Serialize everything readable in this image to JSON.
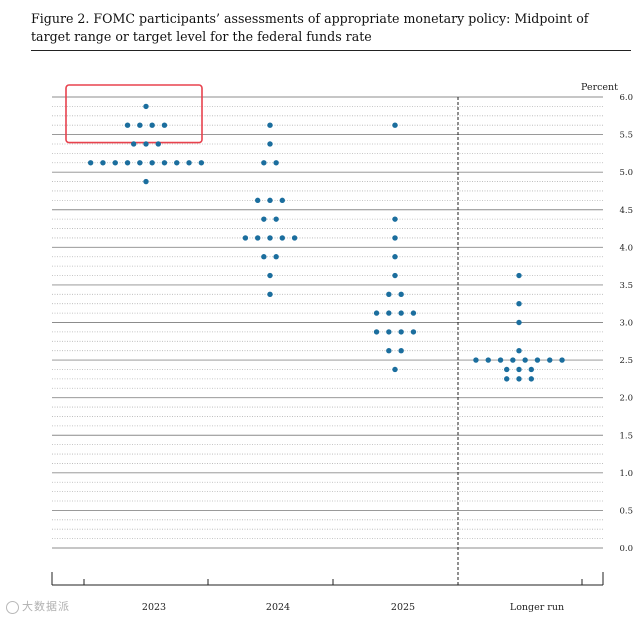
{
  "figure": {
    "title": "Figure 2.  FOMC participants’ assessments of appropriate monetary policy: Midpoint of target range or target level for the federal funds rate"
  },
  "watermark": {
    "text": "大数据派",
    "icon": "logo-circle-icon"
  },
  "highlight": {
    "color": "#e8424e",
    "column": "2023",
    "y_range": [
      5.5,
      6.0
    ]
  },
  "chart_data": {
    "type": "scatter",
    "title": "",
    "xlabel": "",
    "ylabel": "Percent",
    "ylim": [
      0,
      6
    ],
    "yticks": [
      "0.0",
      "0.5",
      "1.0",
      "1.5",
      "2.0",
      "2.5",
      "3.0",
      "3.5",
      "4.0",
      "4.5",
      "5.0",
      "5.5",
      "6.0"
    ],
    "categories": [
      "2023",
      "2024",
      "2025",
      "Longer run"
    ],
    "dot_color": "#1b6e9e",
    "columns": [
      {
        "label": "2023",
        "points": [
          {
            "y": 5.875,
            "count": 1
          },
          {
            "y": 5.625,
            "count": 4
          },
          {
            "y": 5.375,
            "count": 3
          },
          {
            "y": 5.125,
            "count": 10
          },
          {
            "y": 4.875,
            "count": 1
          }
        ]
      },
      {
        "label": "2024",
        "points": [
          {
            "y": 5.625,
            "count": 1
          },
          {
            "y": 5.375,
            "count": 1
          },
          {
            "y": 5.125,
            "count": 2
          },
          {
            "y": 4.625,
            "count": 3
          },
          {
            "y": 4.375,
            "count": 2
          },
          {
            "y": 4.125,
            "count": 5
          },
          {
            "y": 3.875,
            "count": 2
          },
          {
            "y": 3.625,
            "count": 1
          },
          {
            "y": 3.375,
            "count": 1
          }
        ]
      },
      {
        "label": "2025",
        "points": [
          {
            "y": 5.625,
            "count": 1
          },
          {
            "y": 4.375,
            "count": 1
          },
          {
            "y": 4.125,
            "count": 1
          },
          {
            "y": 3.875,
            "count": 1
          },
          {
            "y": 3.625,
            "count": 1
          },
          {
            "y": 3.375,
            "count": 2
          },
          {
            "y": 3.125,
            "count": 4
          },
          {
            "y": 2.875,
            "count": 4
          },
          {
            "y": 2.625,
            "count": 2
          },
          {
            "y": 2.375,
            "count": 1
          }
        ]
      },
      {
        "label": "Longer run",
        "points": [
          {
            "y": 3.625,
            "count": 1
          },
          {
            "y": 3.25,
            "count": 1
          },
          {
            "y": 3.0,
            "count": 1
          },
          {
            "y": 2.625,
            "count": 1
          },
          {
            "y": 2.5,
            "count": 8
          },
          {
            "y": 2.375,
            "count": 3
          },
          {
            "y": 2.25,
            "count": 3
          }
        ]
      }
    ],
    "grid": true,
    "divider_before": "Longer run"
  }
}
